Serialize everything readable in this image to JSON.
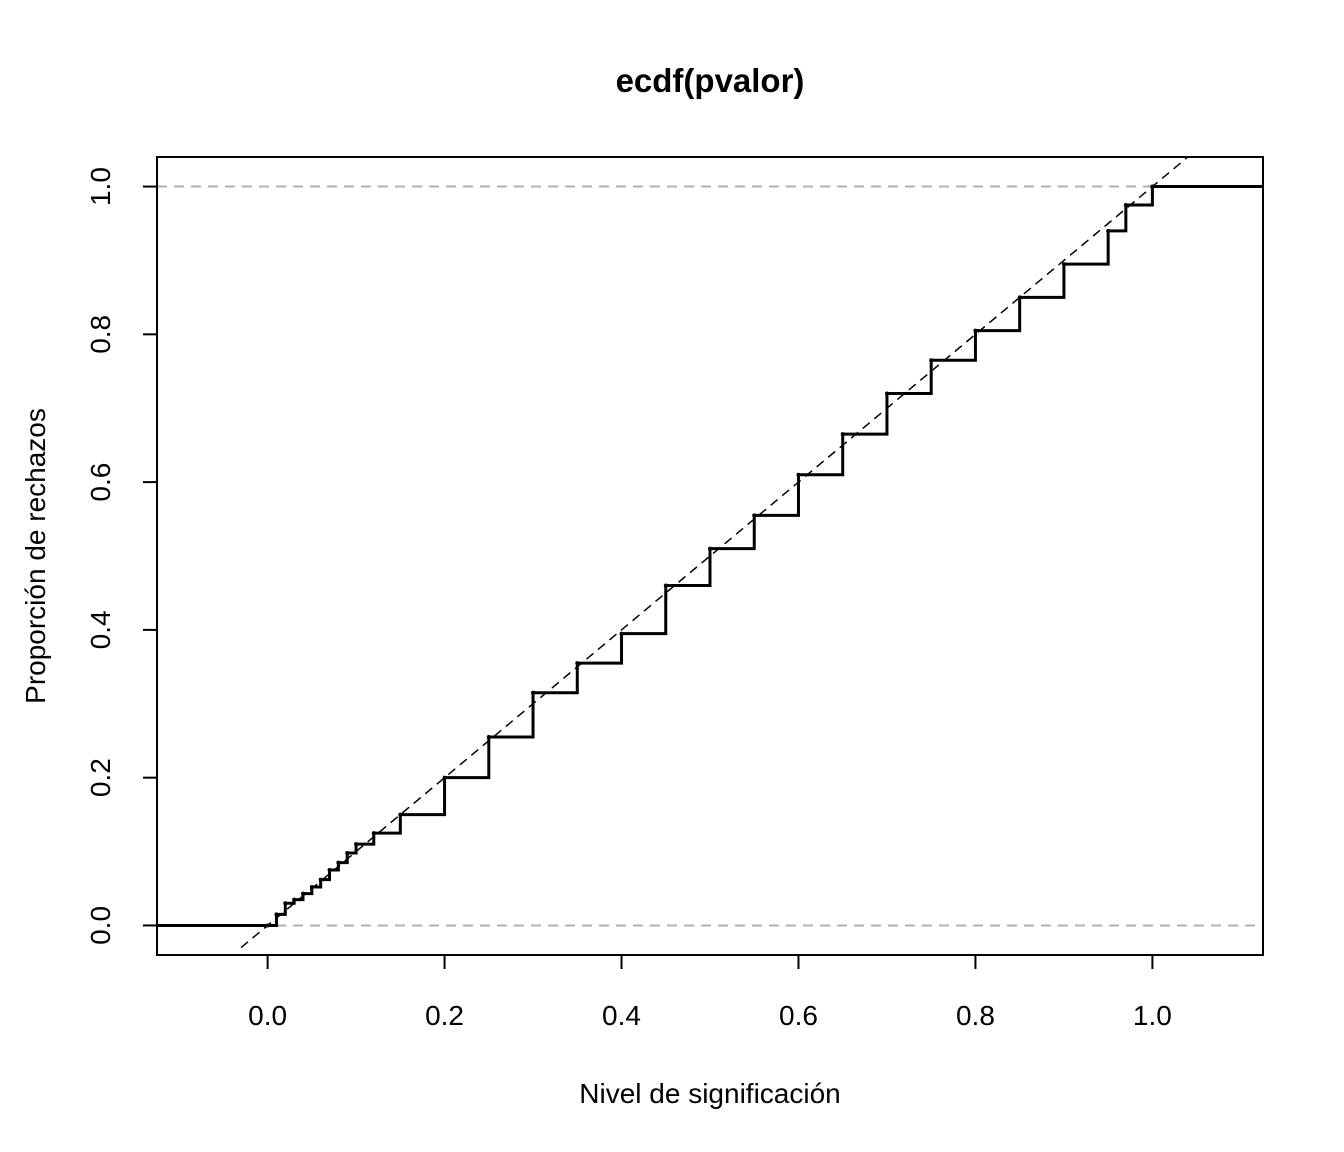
{
  "chart_data": {
    "type": "line",
    "title": "ecdf(pvalor)",
    "xlabel": "Nivel de significación",
    "ylabel": "Proporción de rechazos",
    "xlim": [
      -0.125,
      1.125
    ],
    "ylim": [
      -0.04,
      1.04
    ],
    "x_ticks": [
      "0.0",
      "0.2",
      "0.4",
      "0.6",
      "0.8",
      "1.0"
    ],
    "y_ticks": [
      "0.0",
      "0.2",
      "0.4",
      "0.6",
      "0.8",
      "1.0"
    ],
    "grid": false,
    "legend": "none",
    "reference_lines": {
      "horizontal_dashed_gray": [
        0,
        1
      ],
      "diagonal_dashed_black": "y = x"
    },
    "series": [
      {
        "style": "step",
        "x": [
          -0.125,
          0.0,
          0.01,
          0.02,
          0.03,
          0.04,
          0.05,
          0.06,
          0.07,
          0.08,
          0.09,
          0.1,
          0.12,
          0.15,
          0.2,
          0.25,
          0.3,
          0.35,
          0.4,
          0.45,
          0.5,
          0.55,
          0.6,
          0.65,
          0.7,
          0.75,
          0.8,
          0.85,
          0.9,
          0.95,
          0.97,
          1.0,
          1.125
        ],
        "y": [
          0.0,
          0.0,
          0.015,
          0.03,
          0.035,
          0.043,
          0.052,
          0.062,
          0.075,
          0.085,
          0.098,
          0.11,
          0.125,
          0.15,
          0.2,
          0.255,
          0.315,
          0.355,
          0.395,
          0.46,
          0.51,
          0.555,
          0.61,
          0.665,
          0.72,
          0.765,
          0.805,
          0.85,
          0.895,
          0.94,
          0.975,
          1.0,
          1.0
        ]
      }
    ],
    "colors": {
      "ecdf": "#000000",
      "diagonal": "#000000",
      "hlines": "#b0b0b0"
    }
  }
}
